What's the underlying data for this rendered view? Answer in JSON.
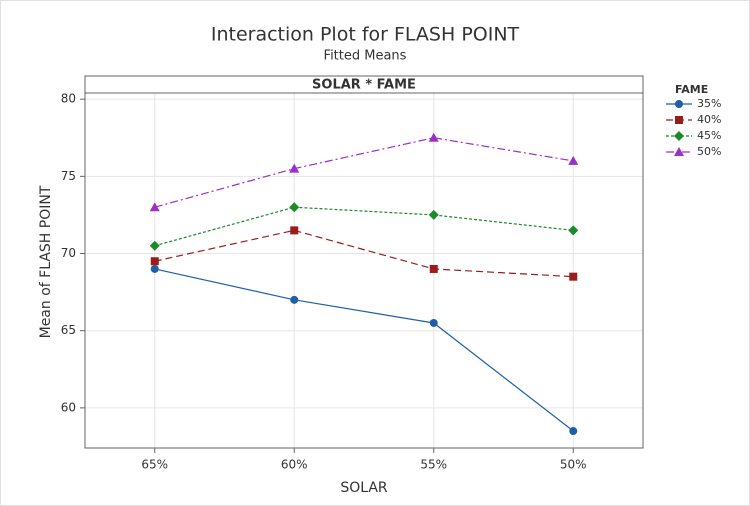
{
  "chart_data": {
    "type": "line",
    "title": "Interaction Plot for FLASH POINT",
    "subtitle": "Fitted Means",
    "panel_label": "SOLAR * FAME",
    "x_label": "SOLAR",
    "y_label": "Mean of FLASH POINT",
    "legend_title": "FAME",
    "legend_position": "right",
    "grid": true,
    "categories": [
      "65%",
      "60%",
      "55%",
      "50%"
    ],
    "ylim": [
      57.4,
      80.4
    ],
    "yticks": [
      60,
      65,
      70,
      75,
      80
    ],
    "series": [
      {
        "name": "35%",
        "color": "#1f5fa8",
        "marker": "circle",
        "dash": "solid",
        "values": [
          69,
          67,
          65.5,
          58.5
        ]
      },
      {
        "name": "40%",
        "color": "#9b1c1c",
        "marker": "square",
        "dash": "dashed",
        "values": [
          69.5,
          71.5,
          69,
          68.5
        ]
      },
      {
        "name": "45%",
        "color": "#1a8a2a",
        "marker": "diamond",
        "dash": "dotted",
        "values": [
          70.5,
          73,
          72.5,
          71.5
        ]
      },
      {
        "name": "50%",
        "color": "#9b30c8",
        "marker": "triangle",
        "dash": "dashdot",
        "values": [
          73,
          75.5,
          77.5,
          76
        ]
      }
    ]
  }
}
